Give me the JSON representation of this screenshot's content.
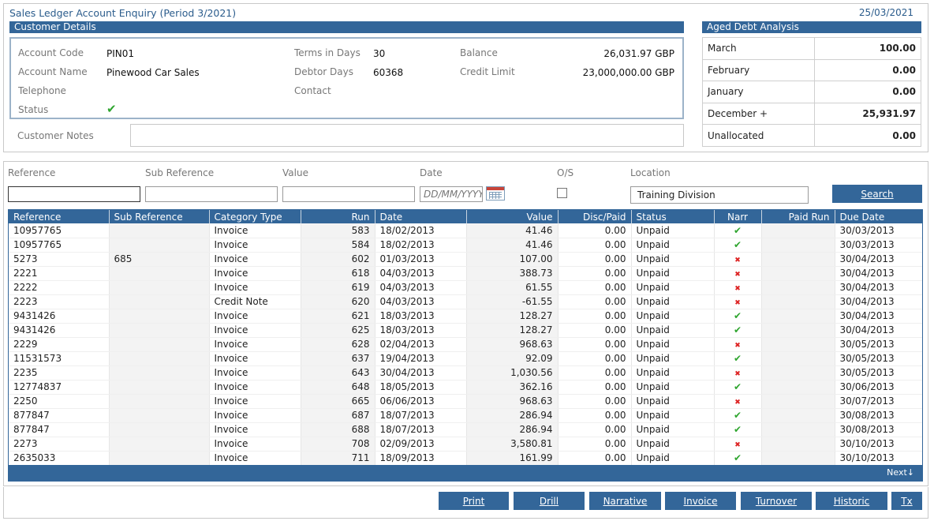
{
  "header": {
    "title": "Sales Ledger Account Enquiry (Period 3/2021)",
    "date": "25/03/2021"
  },
  "customer": {
    "section_title": "Customer Details",
    "account_code_label": "Account Code",
    "account_code": "PIN01",
    "account_name_label": "Account Name",
    "account_name": "Pinewood Car Sales",
    "telephone_label": "Telephone",
    "status_label": "Status",
    "status_icon": "check-icon",
    "terms_label": "Terms in Days",
    "terms": "30",
    "debtor_days_label": "Debtor Days",
    "debtor_days": "60368",
    "contact_label": "Contact",
    "balance_label": "Balance",
    "balance": "26,031.97 GBP",
    "credit_limit_label": "Credit Limit",
    "credit_limit": "23,000,000.00 GBP",
    "notes_label": "Customer Notes"
  },
  "aged": {
    "section_title": "Aged Debt Analysis",
    "rows": [
      {
        "label": "March",
        "amount": "100.00"
      },
      {
        "label": "February",
        "amount": "0.00"
      },
      {
        "label": "January",
        "amount": "0.00"
      },
      {
        "label": "December +",
        "amount": "25,931.97"
      },
      {
        "label": "Unallocated",
        "amount": "0.00"
      }
    ]
  },
  "filters": {
    "reference_label": "Reference",
    "subref_label": "Sub Reference",
    "value_label": "Value",
    "date_label": "Date",
    "date_placeholder": "DD/MM/YYYY",
    "os_label": "O/S",
    "location_label": "Location",
    "location_value": "Training Division",
    "search_label": "Search"
  },
  "grid": {
    "columns": [
      "Reference",
      "Sub Reference",
      "Category Type",
      "Run",
      "Date",
      "Value",
      "Disc/Paid",
      "Status",
      "Narr",
      "Paid Run",
      "Due Date"
    ],
    "rows": [
      [
        "10957765",
        "",
        "Invoice",
        "583",
        "18/02/2013",
        "41.46",
        "0.00",
        "Unpaid",
        "ok",
        "",
        "30/03/2013"
      ],
      [
        "10957765",
        "",
        "Invoice",
        "584",
        "18/02/2013",
        "41.46",
        "0.00",
        "Unpaid",
        "ok",
        "",
        "30/03/2013"
      ],
      [
        "5273",
        "685",
        "Invoice",
        "602",
        "01/03/2013",
        "107.00",
        "0.00",
        "Unpaid",
        "no",
        "",
        "30/04/2013"
      ],
      [
        "2221",
        "",
        "Invoice",
        "618",
        "04/03/2013",
        "388.73",
        "0.00",
        "Unpaid",
        "no",
        "",
        "30/04/2013"
      ],
      [
        "2222",
        "",
        "Invoice",
        "619",
        "04/03/2013",
        "61.55",
        "0.00",
        "Unpaid",
        "no",
        "",
        "30/04/2013"
      ],
      [
        "2223",
        "",
        "Credit Note",
        "620",
        "04/03/2013",
        "-61.55",
        "0.00",
        "Unpaid",
        "no",
        "",
        "30/04/2013"
      ],
      [
        "9431426",
        "",
        "Invoice",
        "621",
        "18/03/2013",
        "128.27",
        "0.00",
        "Unpaid",
        "ok",
        "",
        "30/04/2013"
      ],
      [
        "9431426",
        "",
        "Invoice",
        "625",
        "18/03/2013",
        "128.27",
        "0.00",
        "Unpaid",
        "ok",
        "",
        "30/04/2013"
      ],
      [
        "2229",
        "",
        "Invoice",
        "628",
        "02/04/2013",
        "968.63",
        "0.00",
        "Unpaid",
        "no",
        "",
        "30/05/2013"
      ],
      [
        "11531573",
        "",
        "Invoice",
        "637",
        "19/04/2013",
        "92.09",
        "0.00",
        "Unpaid",
        "ok",
        "",
        "30/05/2013"
      ],
      [
        "2235",
        "",
        "Invoice",
        "643",
        "30/04/2013",
        "1,030.56",
        "0.00",
        "Unpaid",
        "no",
        "",
        "30/05/2013"
      ],
      [
        "12774837",
        "",
        "Invoice",
        "648",
        "18/05/2013",
        "362.16",
        "0.00",
        "Unpaid",
        "ok",
        "",
        "30/06/2013"
      ],
      [
        "2250",
        "",
        "Invoice",
        "665",
        "06/06/2013",
        "968.63",
        "0.00",
        "Unpaid",
        "no",
        "",
        "30/07/2013"
      ],
      [
        "877847",
        "",
        "Invoice",
        "687",
        "18/07/2013",
        "286.94",
        "0.00",
        "Unpaid",
        "ok",
        "",
        "30/08/2013"
      ],
      [
        "877847",
        "",
        "Invoice",
        "688",
        "18/07/2013",
        "286.94",
        "0.00",
        "Unpaid",
        "ok",
        "",
        "30/08/2013"
      ],
      [
        "2273",
        "",
        "Invoice",
        "708",
        "02/09/2013",
        "3,580.81",
        "0.00",
        "Unpaid",
        "no",
        "",
        "30/10/2013"
      ],
      [
        "2635033",
        "",
        "Invoice",
        "711",
        "18/09/2013",
        "161.99",
        "0.00",
        "Unpaid",
        "ok",
        "",
        "30/10/2013"
      ]
    ],
    "next_label": "Next↓"
  },
  "buttons": [
    "Print",
    "Drill",
    "Narrative",
    "Invoice",
    "Turnover",
    "Historic",
    "Tx"
  ],
  "colors": {
    "accent": "#336699",
    "ok": "#2fa52f",
    "bad": "#dd2222"
  }
}
